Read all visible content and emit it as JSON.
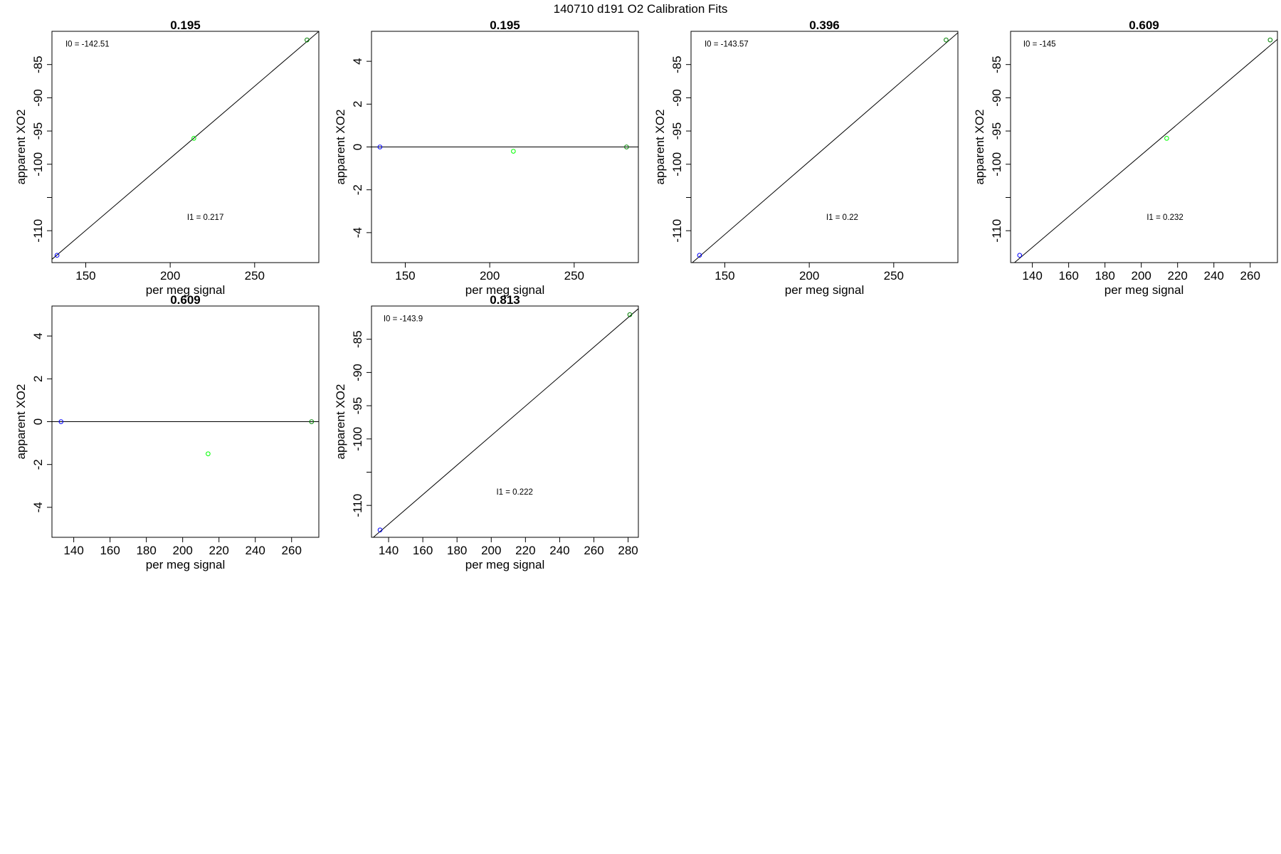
{
  "figure_title": "140710   d191   O2 Calibration Fits",
  "chart_data": [
    {
      "type": "scatter",
      "title": "0.195",
      "xlabel": "per meg signal",
      "ylabel": "apparent XO2",
      "xlim": [
        130,
        288
      ],
      "ylim": [
        -114.8,
        -80.0
      ],
      "xticks": [
        150,
        200,
        250
      ],
      "yticks": [
        -110,
        -105,
        -100,
        -95,
        -90,
        -85
      ],
      "ytick_labels": [
        "-110",
        "",
        "-100",
        "-95",
        "-90",
        "-85"
      ],
      "fit_line": {
        "intercept": -142.51,
        "slope": 0.217
      },
      "annotations": [
        {
          "text": "I0 =  -142.51",
          "x": 138,
          "y": -82.3
        },
        {
          "text": "I1 =  0.217",
          "x": 210,
          "y": -108.4
        }
      ],
      "points": [
        {
          "x": 133,
          "y": -113.7,
          "color": "#0000ff"
        },
        {
          "x": 214,
          "y": -96.1,
          "color": "#00ff00"
        },
        {
          "x": 281,
          "y": -81.3,
          "color": "#008000"
        }
      ]
    },
    {
      "type": "scatter",
      "title": "0.195",
      "xlabel": "per meg signal",
      "ylabel": "apparent XO2",
      "xlim": [
        130,
        288
      ],
      "ylim": [
        -5.4,
        5.4
      ],
      "xticks": [
        150,
        200,
        250
      ],
      "yticks": [
        -4,
        -2,
        0,
        2,
        4
      ],
      "ytick_labels": [
        "-4",
        "-2",
        "0",
        "2",
        "4"
      ],
      "fit_line": {
        "intercept": 0,
        "slope": 0
      },
      "annotations": [],
      "points": [
        {
          "x": 135,
          "y": 0,
          "color": "#0000ff"
        },
        {
          "x": 214,
          "y": -0.2,
          "color": "#00ff00"
        },
        {
          "x": 281,
          "y": 0,
          "color": "#008000"
        }
      ]
    },
    {
      "type": "scatter",
      "title": "0.396",
      "xlabel": "per meg signal",
      "ylabel": "apparent XO2",
      "xlim": [
        130,
        288
      ],
      "ylim": [
        -114.8,
        -80.0
      ],
      "xticks": [
        150,
        200,
        250
      ],
      "yticks": [
        -110,
        -105,
        -100,
        -95,
        -90,
        -85
      ],
      "ytick_labels": [
        "-110",
        "",
        "-100",
        "-95",
        "-90",
        "-85"
      ],
      "fit_line": {
        "intercept": -143.57,
        "slope": 0.22
      },
      "annotations": [
        {
          "text": "I0 =  -143.57",
          "x": 138,
          "y": -82.3
        },
        {
          "text": "I1 =  0.22",
          "x": 210,
          "y": -108.4
        }
      ],
      "points": [
        {
          "x": 135,
          "y": -113.7,
          "color": "#0000ff"
        },
        {
          "x": 281,
          "y": -81.3,
          "color": "#008000"
        }
      ]
    },
    {
      "type": "scatter",
      "title": "0.609",
      "xlabel": "per meg signal",
      "ylabel": "apparent XO2",
      "xlim": [
        128,
        275
      ],
      "ylim": [
        -114.8,
        -80.0
      ],
      "xticks": [
        140,
        160,
        180,
        200,
        220,
        240,
        260
      ],
      "yticks": [
        -110,
        -105,
        -100,
        -95,
        -90,
        -85
      ],
      "ytick_labels": [
        "-110",
        "",
        "-100",
        "-95",
        "-90",
        "-85"
      ],
      "fit_line": {
        "intercept": -145,
        "slope": 0.232
      },
      "annotations": [
        {
          "text": "I0 =  -145",
          "x": 135,
          "y": -82.3
        },
        {
          "text": "I1 =  0.232",
          "x": 203,
          "y": -108.4
        }
      ],
      "points": [
        {
          "x": 133,
          "y": -113.7,
          "color": "#0000ff"
        },
        {
          "x": 214,
          "y": -96.1,
          "color": "#00ff00"
        },
        {
          "x": 271,
          "y": -81.3,
          "color": "#008000"
        }
      ]
    },
    {
      "type": "scatter",
      "title": "0.609",
      "xlabel": "per meg signal",
      "ylabel": "apparent XO2",
      "xlim": [
        128,
        275
      ],
      "ylim": [
        -5.4,
        5.4
      ],
      "xticks": [
        140,
        160,
        180,
        200,
        220,
        240,
        260
      ],
      "yticks": [
        -4,
        -2,
        0,
        2,
        4
      ],
      "ytick_labels": [
        "-4",
        "-2",
        "0",
        "2",
        "4"
      ],
      "fit_line": {
        "intercept": 0,
        "slope": 0
      },
      "annotations": [],
      "points": [
        {
          "x": 133,
          "y": 0,
          "color": "#0000ff"
        },
        {
          "x": 214,
          "y": -1.5,
          "color": "#00ff00"
        },
        {
          "x": 271,
          "y": 0,
          "color": "#008000"
        }
      ]
    },
    {
      "type": "scatter",
      "title": "0.813",
      "xlabel": "per meg signal",
      "ylabel": "apparent XO2",
      "xlim": [
        130,
        286
      ],
      "ylim": [
        -114.8,
        -80.0
      ],
      "xticks": [
        140,
        160,
        180,
        200,
        220,
        240,
        260,
        280
      ],
      "yticks": [
        -110,
        -105,
        -100,
        -95,
        -90,
        -85
      ],
      "ytick_labels": [
        "-110",
        "",
        "-100",
        "-95",
        "-90",
        "-85"
      ],
      "fit_line": {
        "intercept": -143.9,
        "slope": 0.222
      },
      "annotations": [
        {
          "text": "I0 =  -143.9",
          "x": 137,
          "y": -82.3
        },
        {
          "text": "I1 =  0.222",
          "x": 203,
          "y": -108.4
        }
      ],
      "points": [
        {
          "x": 135,
          "y": -113.7,
          "color": "#0000ff"
        },
        {
          "x": 281,
          "y": -81.3,
          "color": "#008000"
        }
      ]
    }
  ]
}
